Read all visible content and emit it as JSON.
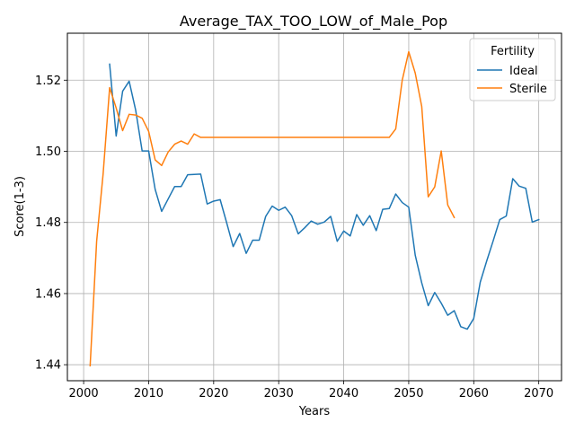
{
  "chart_data": {
    "type": "line",
    "title": "Average_TAX_TOO_LOW_of_Male_Pop",
    "xlabel": "Years",
    "ylabel": "Score(1-3)",
    "xlim": [
      1997.5,
      2073.5
    ],
    "ylim": [
      1.4355,
      1.5332
    ],
    "xticks": [
      2000,
      2010,
      2020,
      2030,
      2040,
      2050,
      2060,
      2070
    ],
    "yticks": [
      1.44,
      1.46,
      1.48,
      1.5,
      1.52
    ],
    "ytick_labels": [
      "1.44",
      "1.46",
      "1.48",
      "1.50",
      "1.52"
    ],
    "grid": true,
    "legend": {
      "title": "Fertility",
      "placement": "top-right"
    },
    "series": [
      {
        "name": "Ideal",
        "color": "#1f77b4",
        "x": [
          2004,
          2005,
          2006,
          2007,
          2008,
          2009,
          2010,
          2011,
          2012,
          2013,
          2014,
          2015,
          2016,
          2017,
          2018,
          2019,
          2020,
          2021,
          2022,
          2023,
          2024,
          2025,
          2026,
          2027,
          2028,
          2029,
          2030,
          2031,
          2032,
          2033,
          2034,
          2035,
          2036,
          2037,
          2038,
          2039,
          2040,
          2041,
          2042,
          2043,
          2044,
          2045,
          2046,
          2047,
          2048,
          2049,
          2050,
          2051,
          2052,
          2053,
          2054,
          2055,
          2056,
          2057,
          2058,
          2059,
          2060,
          2061,
          2062,
          2063,
          2064,
          2065,
          2066,
          2067,
          2068,
          2069,
          2070
        ],
        "values": [
          1.5245,
          1.5043,
          1.5169,
          1.5197,
          1.5116,
          1.5001,
          1.5001,
          1.4893,
          1.4831,
          1.4866,
          1.4901,
          1.4901,
          1.4934,
          1.4935,
          1.4936,
          1.4852,
          1.486,
          1.4864,
          1.4799,
          1.4732,
          1.4769,
          1.4713,
          1.475,
          1.475,
          1.4817,
          1.4846,
          1.4834,
          1.4843,
          1.4819,
          1.4768,
          1.4785,
          1.4804,
          1.4795,
          1.4801,
          1.4817,
          1.4747,
          1.4776,
          1.4762,
          1.4822,
          1.4792,
          1.4819,
          1.4777,
          1.4837,
          1.4839,
          1.488,
          1.4856,
          1.4843,
          1.4708,
          1.463,
          1.4566,
          1.4603,
          1.4573,
          1.4539,
          1.4552,
          1.4507,
          1.45,
          1.453,
          1.4632,
          1.4692,
          1.4749,
          1.4808,
          1.4818,
          1.4923,
          1.4902,
          1.4896,
          1.4801,
          1.4808
        ]
      },
      {
        "name": "Sterile",
        "color": "#ff7f0e",
        "x": [
          2001,
          2002,
          2003,
          2004,
          2005,
          2006,
          2007,
          2008,
          2009,
          2010,
          2011,
          2012,
          2013,
          2014,
          2015,
          2016,
          2017,
          2018,
          2019,
          2020,
          2021,
          2022,
          2023,
          2024,
          2025,
          2026,
          2027,
          2028,
          2029,
          2030,
          2031,
          2032,
          2033,
          2034,
          2035,
          2036,
          2037,
          2038,
          2039,
          2040,
          2041,
          2042,
          2043,
          2044,
          2045,
          2046,
          2047,
          2048,
          2049,
          2050,
          2051,
          2052,
          2053,
          2054,
          2055,
          2056,
          2057
        ],
        "values": [
          1.4397,
          1.4747,
          1.4937,
          1.5179,
          1.5122,
          1.5058,
          1.5104,
          1.5102,
          1.5093,
          1.5056,
          1.4976,
          1.496,
          1.4998,
          1.502,
          1.5029,
          1.502,
          1.5049,
          1.5039,
          1.5039,
          1.5039,
          1.5039,
          1.5039,
          1.5039,
          1.5039,
          1.5039,
          1.5039,
          1.5039,
          1.5039,
          1.5039,
          1.5039,
          1.5039,
          1.5039,
          1.5039,
          1.5039,
          1.5039,
          1.5039,
          1.5039,
          1.5039,
          1.5039,
          1.5039,
          1.5039,
          1.5039,
          1.5039,
          1.5039,
          1.5039,
          1.5039,
          1.5039,
          1.5063,
          1.52,
          1.528,
          1.522,
          1.5126,
          1.4872,
          1.49,
          1.5001,
          1.4849,
          1.4814
        ]
      }
    ]
  }
}
